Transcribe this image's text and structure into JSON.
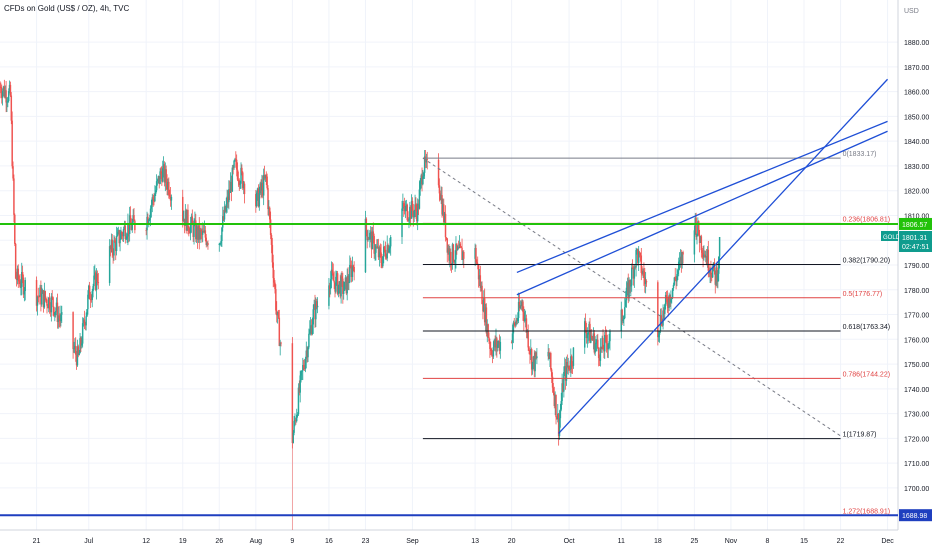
{
  "header": {
    "title": "CFDs on Gold (US$ / OZ), 4h, TVC"
  },
  "chart_data": {
    "type": "candlestick",
    "symbol": "GOLD",
    "currency_label": "USD",
    "timeframe": "4h",
    "ylim": [
      1683,
      1897
    ],
    "y_ticks": [
      1700,
      1710,
      1720,
      1730,
      1740,
      1750,
      1760,
      1770,
      1780,
      1790,
      1800,
      1810,
      1820,
      1830,
      1840,
      1850,
      1860,
      1870,
      1880
    ],
    "x_ticks": [
      {
        "label": "21",
        "date": "2021-06-21"
      },
      {
        "label": "Jul",
        "date": "2021-07-01"
      },
      {
        "label": "12",
        "date": "2021-07-12"
      },
      {
        "label": "19",
        "date": "2021-07-19"
      },
      {
        "label": "26",
        "date": "2021-07-26"
      },
      {
        "label": "Aug",
        "date": "2021-08-02"
      },
      {
        "label": "9",
        "date": "2021-08-09"
      },
      {
        "label": "16",
        "date": "2021-08-16"
      },
      {
        "label": "23",
        "date": "2021-08-23"
      },
      {
        "label": "Sep",
        "date": "2021-09-01"
      },
      {
        "label": "13",
        "date": "2021-09-13"
      },
      {
        "label": "20",
        "date": "2021-09-20"
      },
      {
        "label": "Oct",
        "date": "2021-10-01"
      },
      {
        "label": "11",
        "date": "2021-10-11"
      },
      {
        "label": "18",
        "date": "2021-10-18"
      },
      {
        "label": "25",
        "date": "2021-10-25"
      },
      {
        "label": "Nov",
        "date": "2021-11-01"
      },
      {
        "label": "8",
        "date": "2021-11-08"
      },
      {
        "label": "15",
        "date": "2021-11-15"
      },
      {
        "label": "22",
        "date": "2021-11-22"
      },
      {
        "label": "Dec",
        "date": "2021-12-01"
      }
    ],
    "price_path": [
      [
        "2021-06-14",
        1862
      ],
      [
        "2021-06-16",
        1858
      ],
      [
        "2021-06-17",
        1785
      ],
      [
        "2021-06-21",
        1778
      ],
      [
        "2021-06-24",
        1775
      ],
      [
        "2021-06-29",
        1752
      ],
      [
        "2021-07-01",
        1778
      ],
      [
        "2021-07-05",
        1795
      ],
      [
        "2021-07-08",
        1805
      ],
      [
        "2021-07-12",
        1808
      ],
      [
        "2021-07-15",
        1828
      ],
      [
        "2021-07-19",
        1810
      ],
      [
        "2021-07-22",
        1802
      ],
      [
        "2021-07-26",
        1800
      ],
      [
        "2021-07-29",
        1830
      ],
      [
        "2021-08-02",
        1815
      ],
      [
        "2021-08-04",
        1825
      ],
      [
        "2021-08-06",
        1770
      ],
      [
        "2021-08-09",
        1720
      ],
      [
        "2021-08-11",
        1748
      ],
      [
        "2021-08-13",
        1770
      ],
      [
        "2021-08-16",
        1785
      ],
      [
        "2021-08-19",
        1780
      ],
      [
        "2021-08-23",
        1805
      ],
      [
        "2021-08-26",
        1792
      ],
      [
        "2021-08-30",
        1812
      ],
      [
        "2021-09-02",
        1812
      ],
      [
        "2021-09-03",
        1830
      ],
      [
        "2021-09-06",
        1825
      ],
      [
        "2021-09-08",
        1794
      ],
      [
        "2021-09-13",
        1795
      ],
      [
        "2021-09-16",
        1756
      ],
      [
        "2021-09-20",
        1762
      ],
      [
        "2021-09-22",
        1775
      ],
      [
        "2021-09-24",
        1750
      ],
      [
        "2021-09-27",
        1755
      ],
      [
        "2021-09-29",
        1725
      ],
      [
        "2021-09-30",
        1745
      ],
      [
        "2021-10-04",
        1765
      ],
      [
        "2021-10-07",
        1755
      ],
      [
        "2021-10-11",
        1768
      ],
      [
        "2021-10-14",
        1795
      ],
      [
        "2021-10-18",
        1765
      ],
      [
        "2021-10-21",
        1782
      ],
      [
        "2021-10-25",
        1808
      ],
      [
        "2021-10-27",
        1795
      ],
      [
        "2021-10-29",
        1785
      ],
      [
        "2021-10-31",
        1801
      ]
    ],
    "last_close": 1801.31,
    "horizontal_lines": [
      {
        "value": 1806.57,
        "color": "#22c20a",
        "label": "1806.57"
      },
      {
        "value": 1688.98,
        "color": "#1f3fbf",
        "label": "1688.98"
      }
    ],
    "price_badge": {
      "symbol": "GOLD",
      "value": "1801.31",
      "countdown": "02:47:51",
      "color": "#0f9c8e"
    },
    "fibonacci": {
      "from_date": "2021-09-03",
      "to_date": "2021-11-22",
      "levels": [
        {
          "ratio": "0",
          "value": 1833.17,
          "color": "#787b86"
        },
        {
          "ratio": "0.236",
          "value": 1806.81,
          "color": "#e04343"
        },
        {
          "ratio": "0.382",
          "value": 1790.2,
          "color": "#131722"
        },
        {
          "ratio": "0.5",
          "value": 1776.77,
          "color": "#e04343"
        },
        {
          "ratio": "0.618",
          "value": 1763.34,
          "color": "#131722"
        },
        {
          "ratio": "0.786",
          "value": 1744.22,
          "color": "#e04343"
        },
        {
          "ratio": "1",
          "value": 1719.87,
          "color": "#131722"
        },
        {
          "ratio": "1.272",
          "value": 1688.91,
          "color": "#e04343"
        }
      ],
      "trend_line": {
        "from": [
          "2021-09-03",
          1833.17
        ],
        "to": [
          "2021-11-22",
          1721
        ]
      }
    },
    "trendlines": [
      {
        "from": [
          "2021-09-29",
          1722
        ],
        "to": [
          "2021-12-01",
          1865
        ],
        "color": "#1f4fd6"
      },
      {
        "from": [
          "2021-09-21",
          1787
        ],
        "to": [
          "2021-12-01",
          1848
        ],
        "color": "#1f4fd6"
      },
      {
        "from": [
          "2021-09-21",
          1778
        ],
        "to": [
          "2021-12-01",
          1844
        ],
        "color": "#1f4fd6"
      }
    ],
    "colors": {
      "up": "#26a69a",
      "down": "#ef5350",
      "grid": "#f0f3fa",
      "axis_text": "#131722"
    }
  }
}
